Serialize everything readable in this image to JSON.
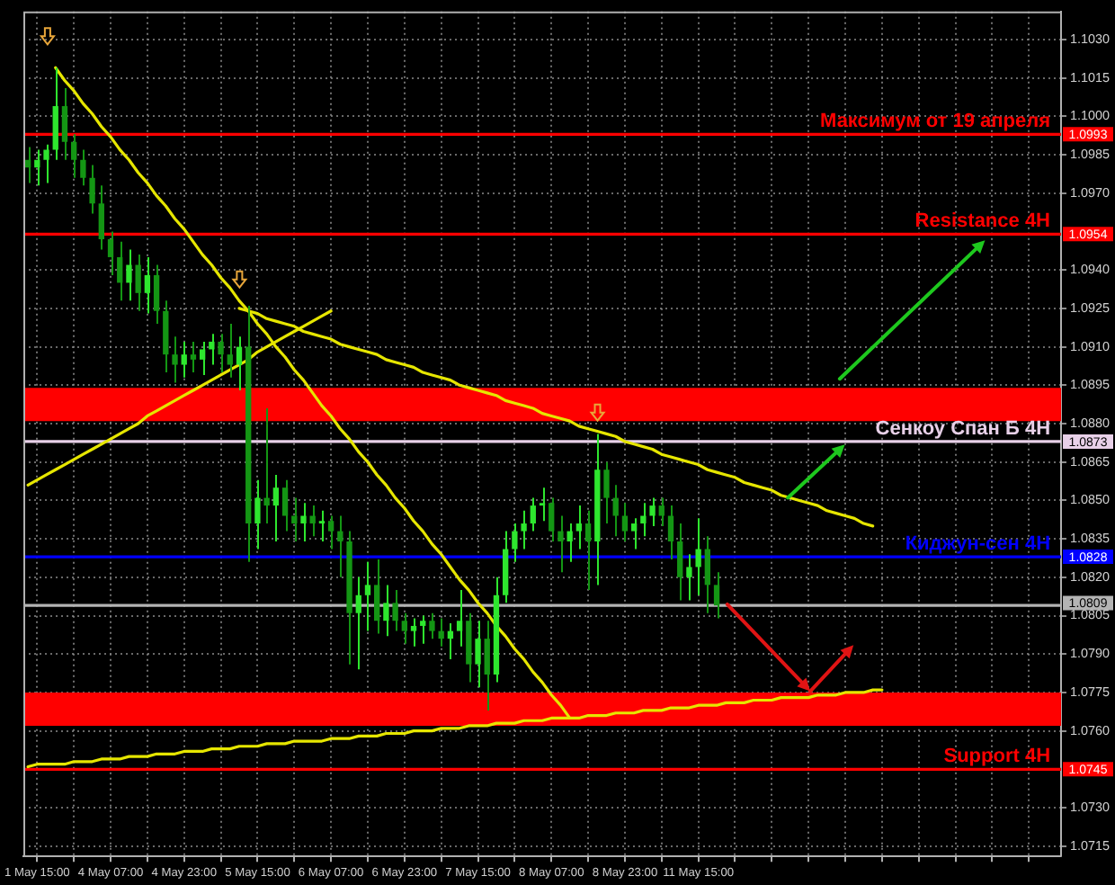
{
  "chart_data": {
    "type": "candlestick",
    "categories": [
      null,
      "1 May 15:00",
      null,
      null,
      null,
      null,
      null,
      null,
      null,
      "4 May 07:00",
      null,
      null,
      null,
      null,
      null,
      null,
      null,
      "4 May 23:00",
      null,
      null,
      null,
      null,
      null,
      null,
      null,
      "5 May 15:00",
      null,
      null,
      null,
      null,
      null,
      null,
      null,
      "6 May 07:00",
      null,
      null,
      null,
      null,
      null,
      null,
      null,
      "6 May 23:00",
      null,
      null,
      null,
      null,
      null,
      null,
      null,
      "7 May 15:00",
      null,
      null,
      null,
      null,
      null,
      null,
      null,
      "8 May 07:00",
      null,
      null,
      null,
      null,
      null,
      null,
      null,
      "8 May 23:00",
      null,
      null,
      null,
      null,
      null,
      null,
      null,
      "11 May 15:00",
      null,
      null,
      null,
      null,
      null,
      null,
      null,
      null,
      null,
      null,
      null,
      null,
      null,
      null,
      null,
      null,
      null,
      null,
      null,
      null,
      null,
      null,
      null,
      null,
      null,
      null,
      null,
      null,
      null,
      null,
      null,
      null,
      null,
      null,
      null,
      null,
      null,
      null,
      null
    ],
    "ohlc": [
      [
        1.0983,
        1.0988,
        1.0974,
        1.098
      ],
      [
        1.098,
        1.0987,
        1.0973,
        1.0983
      ],
      [
        1.0983,
        1.0989,
        1.0974,
        1.0987
      ],
      [
        1.0987,
        1.1019,
        1.0983,
        1.1004
      ],
      [
        1.1004,
        1.1011,
        1.0983,
        1.099
      ],
      [
        1.099,
        1.0993,
        1.0976,
        1.0983
      ],
      [
        1.0983,
        1.0987,
        1.0973,
        1.0976
      ],
      [
        1.0976,
        1.0981,
        1.0962,
        1.0966
      ],
      [
        1.0966,
        1.0973,
        1.0948,
        1.0952
      ],
      [
        1.0952,
        1.0955,
        1.0938,
        1.0945
      ],
      [
        1.0945,
        1.0951,
        1.0928,
        1.0935
      ],
      [
        1.0935,
        1.0948,
        1.0928,
        1.0942
      ],
      [
        1.0942,
        1.0946,
        1.0924,
        1.0931
      ],
      [
        1.0931,
        1.0945,
        1.0923,
        1.0938
      ],
      [
        1.0938,
        1.0942,
        1.0919,
        1.0924
      ],
      [
        1.0924,
        1.0928,
        1.09,
        1.0907
      ],
      [
        1.0907,
        1.0914,
        1.0896,
        1.0903
      ],
      [
        1.0903,
        1.0912,
        1.0898,
        1.0907
      ],
      [
        1.0907,
        1.0912,
        1.09,
        1.0905
      ],
      [
        1.0905,
        1.0912,
        1.0899,
        1.0909
      ],
      [
        1.0909,
        1.0915,
        1.0903,
        1.0912
      ],
      [
        1.0912,
        1.0915,
        1.09,
        1.0907
      ],
      [
        1.0907,
        1.0919,
        1.0898,
        1.0903
      ],
      [
        1.0903,
        1.0914,
        1.0893,
        1.091
      ],
      [
        1.091,
        1.0926,
        1.0826,
        1.0841
      ],
      [
        1.0841,
        1.0858,
        1.0831,
        1.0851
      ],
      [
        1.0851,
        1.0886,
        1.0841,
        1.0848
      ],
      [
        1.0848,
        1.086,
        1.0834,
        1.0855
      ],
      [
        1.0855,
        1.0858,
        1.0838,
        1.0844
      ],
      [
        1.0844,
        1.0851,
        1.0834,
        1.0841
      ],
      [
        1.0841,
        1.0849,
        1.0834,
        1.0844
      ],
      [
        1.0844,
        1.0848,
        1.0836,
        1.0841
      ],
      [
        1.0841,
        1.0846,
        1.0834,
        1.0842
      ],
      [
        1.0842,
        1.0844,
        1.0831,
        1.0838
      ],
      [
        1.0838,
        1.0844,
        1.082,
        1.0834
      ],
      [
        1.0834,
        1.0838,
        1.0786,
        1.0806
      ],
      [
        1.0806,
        1.082,
        1.0784,
        1.0813
      ],
      [
        1.0813,
        1.0826,
        1.0799,
        1.0817
      ],
      [
        1.0817,
        1.0827,
        1.0798,
        1.0803
      ],
      [
        1.0803,
        1.0817,
        1.0797,
        1.081
      ],
      [
        1.081,
        1.0815,
        1.0799,
        1.0803
      ],
      [
        1.0803,
        1.0806,
        1.0794,
        1.0799
      ],
      [
        1.0799,
        1.0804,
        1.0793,
        1.0801
      ],
      [
        1.0801,
        1.0805,
        1.0794,
        1.0803
      ],
      [
        1.0803,
        1.0806,
        1.0796,
        1.0799
      ],
      [
        1.0799,
        1.0804,
        1.0793,
        1.0796
      ],
      [
        1.0796,
        1.0802,
        1.0788,
        1.0799
      ],
      [
        1.0799,
        1.0815,
        1.0793,
        1.0803
      ],
      [
        1.0803,
        1.0806,
        1.0779,
        1.0786
      ],
      [
        1.0786,
        1.0803,
        1.0777,
        1.0796
      ],
      [
        1.0796,
        1.0803,
        1.0768,
        1.0782
      ],
      [
        1.0782,
        1.082,
        1.0779,
        1.0813
      ],
      [
        1.0813,
        1.0838,
        1.081,
        1.0831
      ],
      [
        1.0831,
        1.0841,
        1.0826,
        1.0838
      ],
      [
        1.0838,
        1.0846,
        1.0831,
        1.0841
      ],
      [
        1.0841,
        1.0851,
        1.0838,
        1.0848
      ],
      [
        1.0848,
        1.0855,
        1.0842,
        1.0849
      ],
      [
        1.0849,
        1.0851,
        1.0834,
        1.0838
      ],
      [
        1.0838,
        1.0844,
        1.0822,
        1.0834
      ],
      [
        1.0834,
        1.0841,
        1.0826,
        1.0838
      ],
      [
        1.0838,
        1.0848,
        1.0831,
        1.0841
      ],
      [
        1.0841,
        1.0846,
        1.0815,
        1.0834
      ],
      [
        1.0834,
        1.0876,
        1.0817,
        1.0862
      ],
      [
        1.0862,
        1.0865,
        1.0841,
        1.0851
      ],
      [
        1.0851,
        1.0856,
        1.0836,
        1.0844
      ],
      [
        1.0844,
        1.0849,
        1.0834,
        1.0838
      ],
      [
        1.0838,
        1.0843,
        1.0831,
        1.0841
      ],
      [
        1.0841,
        1.0849,
        1.0836,
        1.0844
      ],
      [
        1.0844,
        1.0851,
        1.084,
        1.0848
      ],
      [
        1.0848,
        1.0851,
        1.084,
        1.0844
      ],
      [
        1.0844,
        1.0848,
        1.0827,
        1.0834
      ],
      [
        1.0834,
        1.0841,
        1.0811,
        1.082
      ],
      [
        1.082,
        1.0829,
        1.0811,
        1.0824
      ],
      [
        1.0824,
        1.0843,
        1.0813,
        1.0831
      ],
      [
        1.0831,
        1.0836,
        1.0806,
        1.0817
      ],
      [
        1.0817,
        1.0822,
        1.0804,
        1.0809
      ],
      null,
      null,
      null,
      null,
      null,
      null,
      null,
      null,
      null,
      null,
      null,
      null,
      null,
      null,
      null,
      null,
      null,
      null,
      null,
      null,
      null,
      null,
      null,
      null,
      null,
      null,
      null,
      null,
      null,
      null,
      null,
      null,
      null,
      null,
      null,
      null,
      null
    ],
    "colors": [
      "#149614",
      "#2ee62e",
      "#2ee62e",
      "#2ee62e",
      "#149614",
      "#149614",
      "#149614",
      "#149614",
      "#149614",
      "#149614",
      "#149614",
      "#2ee62e",
      "#149614",
      "#2ee62e",
      "#149614",
      "#149614",
      "#149614",
      "#2ee62e",
      "#149614",
      "#2ee62e",
      "#2ee62e",
      "#149614",
      "#149614",
      "#2ee62e",
      "#149614",
      "#2ee62e",
      "#149614",
      "#2ee62e",
      "#149614",
      "#149614",
      "#2ee62e",
      "#149614",
      "#2ee62e",
      "#149614",
      "#149614",
      "#149614",
      "#2ee62e",
      "#2ee62e",
      "#149614",
      "#2ee62e",
      "#149614",
      "#149614",
      "#2ee62e",
      "#2ee62e",
      "#149614",
      "#149614",
      "#2ee62e",
      "#2ee62e",
      "#149614",
      "#2ee62e",
      "#149614",
      "#2ee62e",
      "#2ee62e",
      "#2ee62e",
      "#2ee62e",
      "#2ee62e",
      "#2ee62e",
      "#149614",
      "#149614",
      "#2ee62e",
      "#2ee62e",
      "#149614",
      "#2ee62e",
      "#149614",
      "#149614",
      "#149614",
      "#2ee62e",
      "#2ee62e",
      "#2ee62e",
      "#149614",
      "#149614",
      "#149614",
      "#2ee62e",
      "#2ee62e",
      "#149614",
      "#149614",
      null,
      null,
      null,
      null,
      null,
      null,
      null,
      null,
      null,
      null,
      null,
      null,
      null,
      null,
      null,
      null,
      null,
      null,
      null,
      null,
      null,
      null,
      null,
      null,
      null,
      null,
      null,
      null,
      null,
      null,
      null,
      null,
      null,
      null,
      null,
      null,
      null
    ],
    "series": [
      {
        "type": "line",
        "color": "#e6e600",
        "values": [
          null,
          null,
          null,
          1.1019,
          1.1014,
          1.101,
          1.1005,
          1.1001,
          1.0996,
          1.0992,
          1.0987,
          1.0983,
          1.0978,
          1.0974,
          1.0969,
          1.0965,
          1.096,
          1.0956,
          1.0951,
          1.0946,
          1.0942,
          1.0937,
          1.0933,
          1.0928,
          1.0924,
          1.0919,
          1.0915,
          1.091,
          1.0906,
          1.0901,
          1.0897,
          1.0892,
          1.0887,
          1.0883,
          1.0878,
          1.0874,
          1.0869,
          1.0865,
          1.086,
          1.0856,
          1.0851,
          1.0847,
          1.0842,
          1.0838,
          1.0833,
          1.0829,
          1.0824,
          1.0819,
          1.0815,
          1.081,
          1.0806,
          1.0801,
          1.0797,
          1.0792,
          1.0788,
          1.0783,
          1.0779,
          1.0774,
          1.077,
          1.0765,
          null,
          null,
          null,
          null,
          null,
          null,
          null,
          null,
          null,
          null,
          null,
          null,
          null,
          null,
          null,
          null,
          null,
          null,
          null,
          null,
          null,
          null,
          null,
          null,
          null,
          null,
          null,
          null,
          null,
          null,
          null,
          null,
          null,
          null,
          null,
          null,
          null,
          null,
          null,
          null,
          null,
          null,
          null,
          null,
          null,
          null,
          null,
          null,
          null,
          null,
          null,
          null,
          null
        ]
      },
      {
        "type": "line",
        "color": "#e6e600",
        "values": [
          null,
          null,
          null,
          null,
          null,
          null,
          null,
          null,
          null,
          null,
          null,
          null,
          null,
          null,
          null,
          null,
          null,
          null,
          null,
          null,
          null,
          null,
          null,
          1.0925,
          1.0924,
          1.0923,
          1.0921,
          1.092,
          1.0919,
          1.0918,
          1.0916,
          1.0915,
          1.0914,
          1.0913,
          1.0911,
          1.091,
          1.0909,
          1.0908,
          1.0907,
          1.0905,
          1.0904,
          1.0903,
          1.0902,
          1.09,
          1.0899,
          1.0898,
          1.0897,
          1.0895,
          1.0894,
          1.0893,
          1.0892,
          1.0891,
          1.0889,
          1.0888,
          1.0887,
          1.0886,
          1.0884,
          1.0883,
          1.0882,
          1.0881,
          1.0879,
          1.0878,
          1.0877,
          1.0876,
          1.0875,
          1.0873,
          1.0872,
          1.0871,
          1.087,
          1.0868,
          1.0867,
          1.0866,
          1.0865,
          1.0864,
          1.0862,
          1.0861,
          1.086,
          1.0859,
          1.0857,
          1.0856,
          1.0855,
          1.0854,
          1.0852,
          1.0851,
          1.085,
          1.0849,
          1.0848,
          1.0846,
          1.0845,
          1.0844,
          1.0843,
          1.0841,
          1.084,
          null,
          null,
          null,
          null,
          null,
          null,
          null,
          null,
          null,
          null,
          null,
          null,
          null,
          null,
          null,
          null,
          null,
          null,
          null,
          null
        ]
      },
      {
        "type": "line",
        "color": "#e6e600",
        "values": [
          1.0856,
          1.0858,
          1.086,
          1.0862,
          1.0864,
          1.0866,
          1.0868,
          1.087,
          1.0872,
          1.0874,
          1.0876,
          1.0878,
          1.088,
          1.0883,
          1.0885,
          1.0887,
          1.0889,
          1.0891,
          1.0893,
          1.0895,
          1.0897,
          1.0899,
          1.0901,
          1.0903,
          1.0905,
          1.0908,
          1.091,
          1.0912,
          1.0914,
          1.0916,
          1.0918,
          1.092,
          1.0922,
          1.0924,
          null,
          null,
          null,
          null,
          null,
          null,
          null,
          null,
          null,
          null,
          null,
          null,
          null,
          null,
          null,
          null,
          null,
          null,
          null,
          null,
          null,
          null,
          null,
          null,
          null,
          null,
          null,
          null,
          null,
          null,
          null,
          null,
          null,
          null,
          null,
          null,
          null,
          null,
          null,
          null,
          null,
          null,
          null,
          null,
          null,
          null,
          null,
          null,
          null,
          null,
          null,
          null,
          null,
          null,
          null,
          null,
          null,
          null,
          null,
          null,
          null,
          null,
          null,
          null,
          null,
          null,
          null,
          null,
          null,
          null,
          null,
          null,
          null,
          null,
          null,
          null,
          null,
          null,
          null
        ]
      },
      {
        "type": "line",
        "color": "#e6e600",
        "values": [
          1.0746,
          1.0747,
          1.0747,
          1.0747,
          1.0747,
          1.0748,
          1.0748,
          1.0748,
          1.0749,
          1.0749,
          1.0749,
          1.075,
          1.075,
          1.075,
          1.0751,
          1.0751,
          1.0751,
          1.0752,
          1.0752,
          1.0752,
          1.0753,
          1.0753,
          1.0753,
          1.0754,
          1.0754,
          1.0754,
          1.0755,
          1.0755,
          1.0755,
          1.0756,
          1.0756,
          1.0756,
          1.0756,
          1.0757,
          1.0757,
          1.0757,
          1.0758,
          1.0758,
          1.0758,
          1.0759,
          1.0759,
          1.0759,
          1.076,
          1.076,
          1.076,
          1.0761,
          1.0761,
          1.0761,
          1.0762,
          1.0762,
          1.0762,
          1.0763,
          1.0763,
          1.0763,
          1.0764,
          1.0764,
          1.0764,
          1.0765,
          1.0765,
          1.0765,
          1.0765,
          1.0766,
          1.0766,
          1.0766,
          1.0767,
          1.0767,
          1.0767,
          1.0768,
          1.0768,
          1.0768,
          1.0769,
          1.0769,
          1.0769,
          1.077,
          1.077,
          1.077,
          1.0771,
          1.0771,
          1.0771,
          1.0772,
          1.0772,
          1.0772,
          1.0773,
          1.0773,
          1.0773,
          1.0773,
          1.0774,
          1.0774,
          1.0774,
          1.0775,
          1.0775,
          1.0775,
          1.0776,
          1.0776,
          null,
          null,
          null,
          null,
          null,
          null,
          null,
          null,
          null,
          null,
          null,
          null,
          null,
          null,
          null,
          null,
          null,
          null,
          null
        ]
      }
    ],
    "ylim": [
      1.0711,
      1.1041
    ],
    "yticks": [
      1.0715,
      {
        "value": 1.073,
        "label": "1.0730"
      },
      {
        "value": 1.076,
        "label": "1.0760"
      },
      1.0775,
      {
        "value": 1.079,
        "label": "1.0790"
      },
      1.0805,
      {
        "value": 1.082,
        "label": "1.0820"
      },
      1.0835,
      {
        "value": 1.085,
        "label": "1.0850"
      },
      1.0865,
      {
        "value": 1.088,
        "label": "1.0880"
      },
      1.0895,
      {
        "value": 1.091,
        "label": "1.0910"
      },
      1.0925,
      {
        "value": 1.094,
        "label": "1.0940"
      },
      {
        "value": 1.097,
        "label": "1.0970"
      },
      1.0985,
      {
        "value": 1.1,
        "label": "1.1000"
      },
      1.1015,
      {
        "value": 1.103,
        "label": "1.1030"
      }
    ],
    "grid": true,
    "ref_lines": [
      {
        "axis": "y",
        "value": 1.0993,
        "label": "Максимум от 19 апреля",
        "color": "#ff0000"
      },
      {
        "axis": "y",
        "value": 1.0954,
        "label": "Resistance 4H",
        "color": "#ff0000"
      },
      {
        "axis": "y",
        "value": 1.0873,
        "label": "Сенкоу Спан Б 4H",
        "color": "#e8d0e8"
      },
      {
        "axis": "y",
        "value": 1.0828,
        "label": "Киджун-сен 4H",
        "color": "#0000ff"
      },
      {
        "axis": "y",
        "value": 1.0809,
        "label": null,
        "color": "#b4b4b4"
      },
      {
        "axis": "y",
        "value": 1.0745,
        "label": "Support 4H",
        "color": "#ff0000"
      }
    ],
    "bands": [
      {
        "axis": "y",
        "from": 1.0881,
        "to": 1.0894,
        "color": "#ff0000"
      },
      {
        "axis": "y",
        "from": 1.0762,
        "to": 1.0775,
        "color": "#ff0000"
      }
    ],
    "annotations": [
      "1.0993",
      "1.0954",
      "1.0873",
      "1.0828",
      "1.0809",
      "1.0745"
    ]
  }
}
